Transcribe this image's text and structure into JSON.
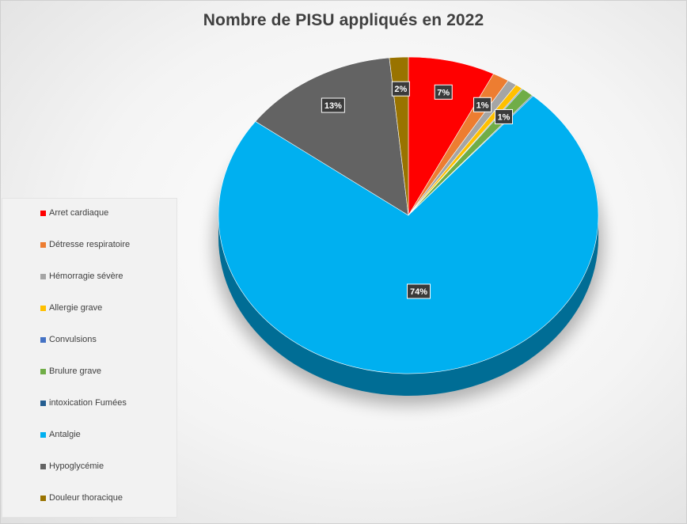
{
  "chart_data": {
    "type": "pie",
    "title": "Nombre de PISU appliqués en 2022",
    "legend_position": "left",
    "categories": [
      "Arret cardiaque",
      "Détresse respiratoire",
      "Hémorragie sévère",
      "Allergie grave",
      "Convulsions",
      "Brulure grave",
      "intoxication Fumées",
      "Antalgie",
      "Hypoglycémie",
      "Douleur thoracique"
    ],
    "values": [
      7.4,
      1.4,
      0.8,
      0.6,
      0.1,
      1.0,
      0.1,
      73.7,
      13.3,
      1.6
    ],
    "data_labels": [
      "7%",
      "1%",
      "",
      "",
      "",
      "1%",
      "",
      "74%",
      "13%",
      "2%"
    ],
    "colors": [
      "#ff0000",
      "#ed7d31",
      "#a5a5a5",
      "#ffc000",
      "#4472c4",
      "#70ad47",
      "#255e91",
      "#00b0f0",
      "#636363",
      "#997300"
    ]
  }
}
